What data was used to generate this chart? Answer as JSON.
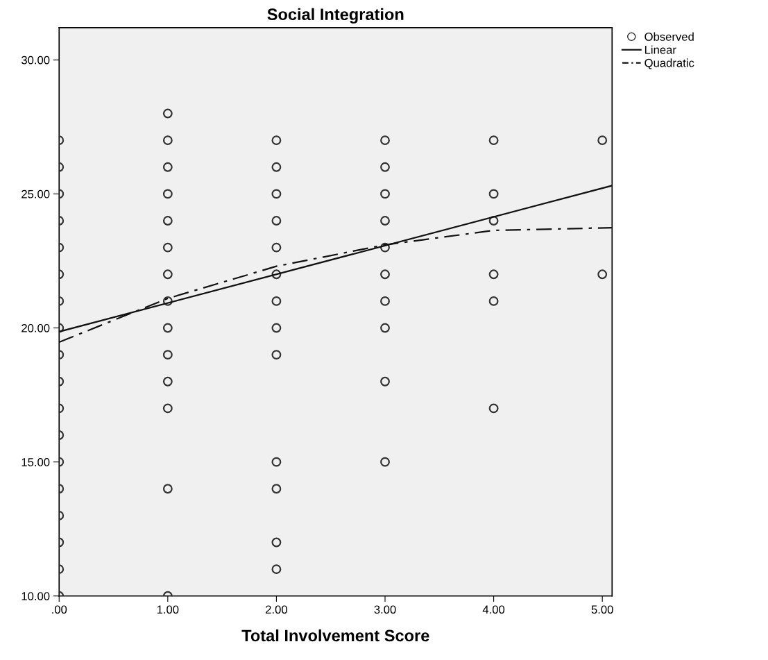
{
  "chart_data": {
    "type": "scatter",
    "title": "Social Integration",
    "xlabel": "Total Involvement Score",
    "xlim": [
      0,
      5.09
    ],
    "ylim": [
      10,
      31.2
    ],
    "xticks": [
      {
        "value": 0,
        "label": ".00"
      },
      {
        "value": 1,
        "label": "1.00"
      },
      {
        "value": 2,
        "label": "2.00"
      },
      {
        "value": 3,
        "label": "3.00"
      },
      {
        "value": 4,
        "label": "4.00"
      },
      {
        "value": 5,
        "label": "5.00"
      }
    ],
    "yticks": [
      {
        "value": 10,
        "label": "10.00"
      },
      {
        "value": 15,
        "label": "15.00"
      },
      {
        "value": 20,
        "label": "20.00"
      },
      {
        "value": 25,
        "label": "25.00"
      },
      {
        "value": 30,
        "label": "30.00"
      }
    ],
    "grid": false,
    "legend": "top right",
    "series": [
      {
        "name": "Observed",
        "color": "#333333",
        "marker": "circle",
        "x": [
          0,
          0,
          0,
          0,
          0,
          0,
          0,
          0,
          0,
          0,
          0,
          0,
          0,
          0,
          0,
          0,
          0,
          0,
          1,
          1,
          1,
          1,
          1,
          1,
          1,
          1,
          1,
          1,
          1,
          1,
          1,
          1,
          2,
          2,
          2,
          2,
          2,
          2,
          2,
          2,
          2,
          2,
          2,
          2,
          2,
          3,
          3,
          3,
          3,
          3,
          3,
          3,
          3,
          3,
          3,
          4,
          4,
          4,
          4,
          4,
          4,
          5,
          5
        ],
        "values": [
          27,
          26,
          25,
          24,
          23,
          22,
          21,
          20,
          19,
          18,
          17,
          16,
          15,
          14,
          13,
          12,
          11,
          10,
          28,
          27,
          26,
          25,
          24,
          23,
          22,
          21,
          20,
          19,
          18,
          17,
          14,
          10,
          27,
          26,
          25,
          24,
          23,
          22,
          21,
          20,
          19,
          15,
          14,
          12,
          11,
          27,
          26,
          25,
          24,
          23,
          22,
          21,
          20,
          18,
          15,
          27,
          25,
          24,
          22,
          21,
          17,
          27,
          22
        ]
      },
      {
        "name": "Linear",
        "type": "line",
        "color": "#111111",
        "line_style": "solid",
        "x": [
          0,
          5.09
        ],
        "values": [
          19.86,
          25.31
        ]
      },
      {
        "name": "Quadratic",
        "type": "line",
        "color": "#111111",
        "line_style": "dashdot",
        "x": [
          0,
          1,
          2,
          3,
          4,
          5.09
        ],
        "values": [
          19.47,
          21.1,
          22.3,
          23.1,
          23.64,
          23.74
        ]
      }
    ]
  }
}
